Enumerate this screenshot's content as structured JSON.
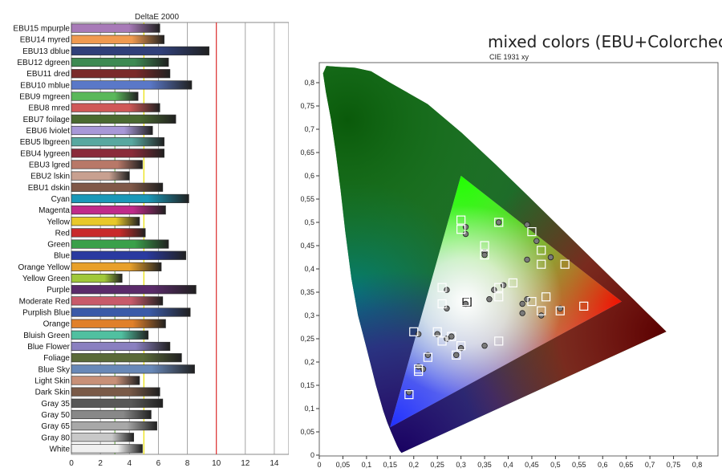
{
  "chart_data": [
    {
      "type": "bar",
      "orientation": "horizontal",
      "title": "DeltaE 2000",
      "xlim": [
        0,
        15
      ],
      "xticks": [
        "0",
        "2",
        "4",
        "6",
        "8",
        "10",
        "12",
        "14"
      ],
      "reference_lines": [
        {
          "value": 3,
          "color": "#7ab35a"
        },
        {
          "value": 5,
          "color": "#e8e000"
        },
        {
          "value": 10,
          "color": "#e03030"
        }
      ],
      "categories": [
        "EBU15 mpurple",
        "EBU14 myred",
        "EBU13 dblue",
        "EBU12 dgreen",
        "EBU11 dred",
        "EBU10 mblue",
        "EBU9 mgreen",
        "EBU8 mred",
        "EBU7 foilage",
        "EBU6 lviolet",
        "EBU5 lbgreen",
        "EBU4 lygreen",
        "EBU3 lgred",
        "EBU2 lskin",
        "EBU1 dskin",
        "Cyan",
        "Magenta",
        "Yellow",
        "Red",
        "Green",
        "Blue",
        "Orange Yellow",
        "Yellow Green",
        "Purple",
        "Moderate Red",
        "Purplish Blue",
        "Orange",
        "Bluish Green",
        "Blue Flower",
        "Foliage",
        "Blue Sky",
        "Light Skin",
        "Dark Skin",
        "Gray 35",
        "Gray 50",
        "Gray 65",
        "Gray 80",
        "White"
      ],
      "values": [
        6.1,
        6.4,
        9.5,
        6.7,
        6.8,
        8.3,
        4.6,
        6.1,
        7.2,
        5.6,
        6.4,
        6.4,
        4.9,
        4.0,
        6.3,
        8.1,
        6.5,
        4.7,
        5.1,
        6.7,
        7.9,
        6.2,
        3.5,
        8.6,
        6.3,
        8.2,
        6.5,
        5.3,
        6.8,
        7.6,
        8.5,
        4.7,
        6.1,
        6.3,
        5.5,
        5.9,
        4.3,
        4.9
      ],
      "colors": [
        "#a87ab8",
        "#f09a50",
        "#30407a",
        "#3d8a52",
        "#7a2a2a",
        "#5a78c8",
        "#5ab85a",
        "#d05858",
        "#4a6a30",
        "#a898d8",
        "#58a8a0",
        "#8a2a3a",
        "#b87868",
        "#c8a090",
        "#805848",
        "#1a98b8",
        "#c02a8a",
        "#e8c82a",
        "#c82a2a",
        "#3aa04a",
        "#2a3aa0",
        "#e8a02a",
        "#a0c83a",
        "#5a2a6a",
        "#c85a6a",
        "#3a5aa8",
        "#e0802a",
        "#50c0a0",
        "#8a80c0",
        "#5a6a38",
        "#6888b8",
        "#c89078",
        "#7a5a48",
        "#585858",
        "#888888",
        "#a8a8a8",
        "#c8c8c8",
        "#f0f0f0"
      ]
    },
    {
      "type": "scatter",
      "title": "mixed colors (EBU+Colorchecker)",
      "subtitle": "CIE 1931 xy",
      "xlim": [
        0,
        0.85
      ],
      "ylim": [
        0,
        0.85
      ],
      "xticks": [
        "0",
        "0,05",
        "0,1",
        "0,15",
        "0,2",
        "0,25",
        "0,3",
        "0,35",
        "0,4",
        "0,45",
        "0,5",
        "0,55",
        "0,6",
        "0,65",
        "0,7",
        "0,75",
        "0,8"
      ],
      "yticks": [
        "0",
        "0,05",
        "0,1",
        "0,15",
        "0,2",
        "0,25",
        "0,3",
        "0,35",
        "0,4",
        "0,45",
        "0,5",
        "0,55",
        "0,6",
        "0,65",
        "0,7",
        "0,75",
        "0,8"
      ],
      "gamut_triangle": [
        [
          0.64,
          0.33
        ],
        [
          0.3,
          0.6
        ],
        [
          0.15,
          0.06
        ]
      ],
      "white_point": [
        0.3127,
        0.329
      ],
      "series": [
        {
          "marker": "square",
          "points": [
            [
              0.19,
              0.13
            ],
            [
              0.21,
              0.18
            ],
            [
              0.21,
              0.185
            ],
            [
              0.2,
              0.265
            ],
            [
              0.23,
              0.21
            ],
            [
              0.25,
              0.265
            ],
            [
              0.26,
              0.245
            ],
            [
              0.28,
              0.255
            ],
            [
              0.3,
              0.235
            ],
            [
              0.29,
              0.215
            ],
            [
              0.26,
              0.36
            ],
            [
              0.26,
              0.325
            ],
            [
              0.31,
              0.33
            ],
            [
              0.35,
              0.45
            ],
            [
              0.35,
              0.43
            ],
            [
              0.3,
              0.485
            ],
            [
              0.3,
              0.505
            ],
            [
              0.38,
              0.5
            ],
            [
              0.45,
              0.48
            ],
            [
              0.47,
              0.44
            ],
            [
              0.52,
              0.41
            ],
            [
              0.47,
              0.41
            ],
            [
              0.41,
              0.37
            ],
            [
              0.38,
              0.36
            ],
            [
              0.38,
              0.34
            ],
            [
              0.45,
              0.33
            ],
            [
              0.48,
              0.34
            ],
            [
              0.47,
              0.31
            ],
            [
              0.51,
              0.31
            ],
            [
              0.56,
              0.32
            ],
            [
              0.38,
              0.245
            ]
          ]
        },
        {
          "marker": "circle",
          "points": [
            [
              0.19,
              0.135
            ],
            [
              0.21,
              0.19
            ],
            [
              0.22,
              0.185
            ],
            [
              0.21,
              0.26
            ],
            [
              0.23,
              0.215
            ],
            [
              0.25,
              0.26
            ],
            [
              0.27,
              0.25
            ],
            [
              0.28,
              0.255
            ],
            [
              0.3,
              0.23
            ],
            [
              0.29,
              0.215
            ],
            [
              0.27,
              0.355
            ],
            [
              0.27,
              0.315
            ],
            [
              0.31,
              0.325
            ],
            [
              0.35,
              0.435
            ],
            [
              0.35,
              0.43
            ],
            [
              0.31,
              0.49
            ],
            [
              0.31,
              0.475
            ],
            [
              0.38,
              0.5
            ],
            [
              0.44,
              0.495
            ],
            [
              0.46,
              0.46
            ],
            [
              0.49,
              0.425
            ],
            [
              0.44,
              0.42
            ],
            [
              0.39,
              0.365
            ],
            [
              0.37,
              0.355
            ],
            [
              0.36,
              0.335
            ],
            [
              0.44,
              0.335
            ],
            [
              0.43,
              0.325
            ],
            [
              0.43,
              0.305
            ],
            [
              0.47,
              0.3
            ],
            [
              0.51,
              0.315
            ],
            [
              0.35,
              0.235
            ]
          ]
        }
      ]
    }
  ]
}
